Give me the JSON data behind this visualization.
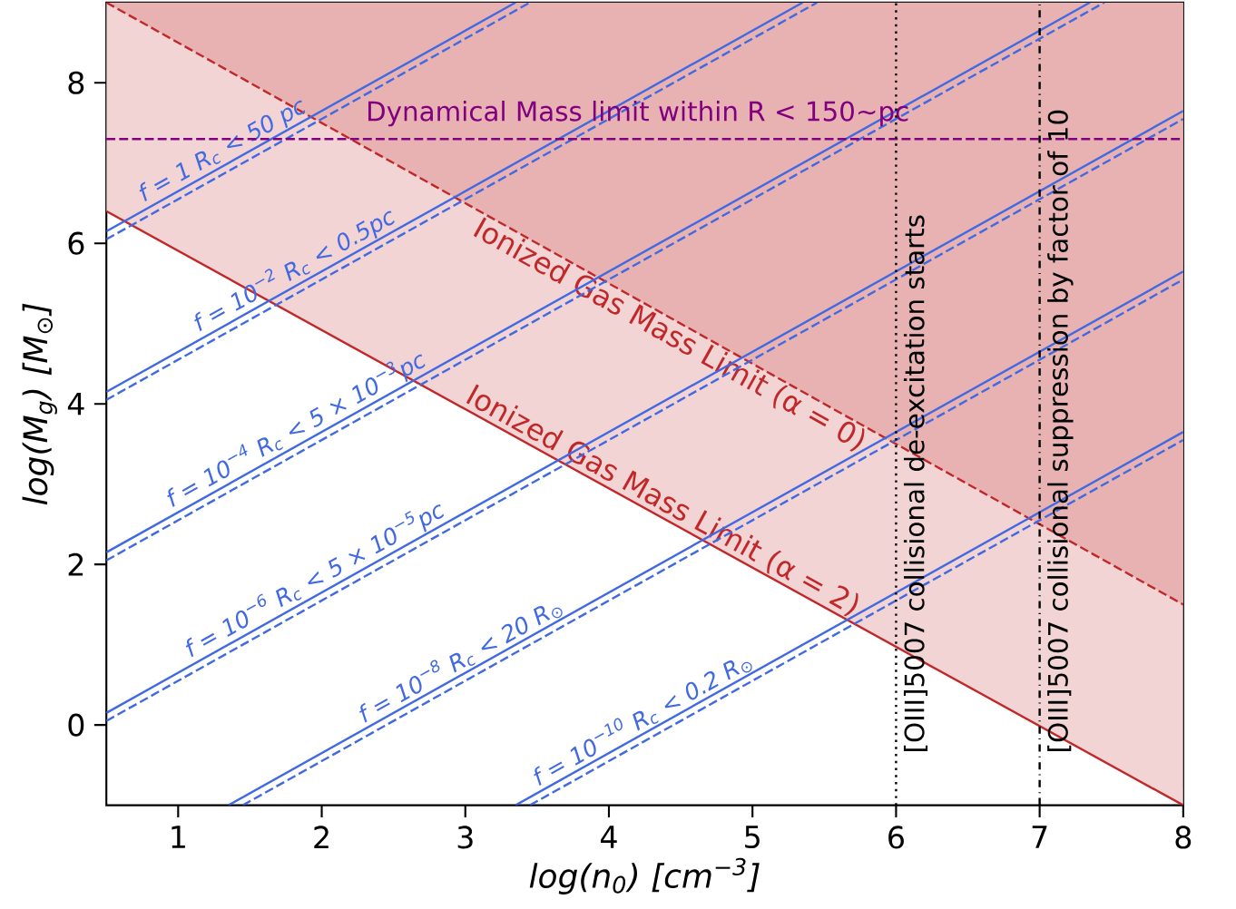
{
  "chart_data": {
    "type": "line",
    "xlabel": "log(n$_{0}$) [cm$^{−3}$]",
    "ylabel": "log(M$_{g}$) [M$_{⊙}$]",
    "xlim": [
      0.5,
      8
    ],
    "ylim": [
      -1,
      9
    ],
    "xticks": [
      1,
      2,
      3,
      4,
      5,
      6,
      7,
      8
    ],
    "yticks": [
      0,
      2,
      4,
      6,
      8
    ],
    "series": [
      {
        "name": "Ionized Gas Mass Limit (α = 2)",
        "color": "#c0282a",
        "line_style": "solid",
        "x": [
          0.5,
          8
        ],
        "values": [
          6.4,
          -1
        ],
        "lower": [
          6.4,
          -1
        ],
        "upper": [
          9,
          9
        ]
      },
      {
        "name": "Ionized Gas Mass Limit (α = 0)",
        "color": "#c0282a",
        "line_style": "dashed",
        "x": [
          0.5,
          8
        ],
        "values": [
          9,
          1.5
        ],
        "lower": [
          9,
          1.5
        ],
        "upper": [
          9,
          9
        ]
      },
      {
        "name": "f = 1  R$_{c}$ < 50 pc",
        "color": "#4169e1",
        "line_style": "solid",
        "x": [
          0.5,
          3.35
        ],
        "values": [
          6.15,
          9
        ]
      },
      {
        "color": "#4169e1",
        "line_style": "dashed",
        "x": [
          0.5,
          3.45
        ],
        "values": [
          6.05,
          9
        ]
      },
      {
        "name": "f = 10$^{−2}$  R$_{c}$ < 0.5pc",
        "color": "#4169e1",
        "line_style": "solid",
        "x": [
          0.5,
          5.35
        ],
        "values": [
          4.15,
          9
        ]
      },
      {
        "color": "#4169e1",
        "line_style": "dashed",
        "x": [
          0.5,
          5.45
        ],
        "values": [
          4.05,
          9
        ]
      },
      {
        "name": "f = 10$^{−4}$  R$_{c}$ < 5 × 10$^{−3}$pc",
        "color": "#4169e1",
        "line_style": "solid",
        "x": [
          0.5,
          7.35
        ],
        "values": [
          2.15,
          9
        ]
      },
      {
        "color": "#4169e1",
        "line_style": "dashed",
        "x": [
          0.5,
          7.45
        ],
        "values": [
          2.05,
          9
        ]
      },
      {
        "name": "f = 10$^{−6}$  R$_{c}$ < 5 × 10$^{−5}$pc",
        "color": "#4169e1",
        "line_style": "solid",
        "x": [
          0.5,
          8
        ],
        "values": [
          0.15,
          7.65
        ]
      },
      {
        "color": "#4169e1",
        "line_style": "dashed",
        "x": [
          0.5,
          8
        ],
        "values": [
          0.05,
          7.55
        ]
      },
      {
        "name": "f = 10$^{−8}$  R$_{c}$ < 20 R$_{⊙}$",
        "color": "#4169e1",
        "line_style": "solid",
        "x": [
          1.35,
          8
        ],
        "values": [
          -1,
          5.65
        ]
      },
      {
        "color": "#4169e1",
        "line_style": "dashed",
        "x": [
          1.45,
          8
        ],
        "values": [
          -1,
          5.55
        ]
      },
      {
        "name": "f = 10$^{−10}$  R$_{c}$ < 0.2 R$_{⊙}$",
        "color": "#4169e1",
        "line_style": "solid",
        "x": [
          3.35,
          8
        ],
        "values": [
          -1,
          3.65
        ]
      },
      {
        "color": "#4169e1",
        "line_style": "dashed",
        "x": [
          3.45,
          8
        ],
        "values": [
          -1,
          3.55
        ]
      }
    ],
    "ref_lines": [
      {
        "axis": "y",
        "value": 7.3,
        "label": "Dynamical Mass limit within R < 150~pc",
        "color": "#800080",
        "line_style": "dashed"
      },
      {
        "axis": "x",
        "value": 6,
        "label": "[OIII]5007 collisional de-excitation starts",
        "color": "#000000",
        "line_style": "dotted"
      },
      {
        "axis": "x",
        "value": 7,
        "label": "[OIII]5007 collisional suppression by factor of 10",
        "color": "#000000",
        "line_style": "dashdot"
      }
    ]
  }
}
